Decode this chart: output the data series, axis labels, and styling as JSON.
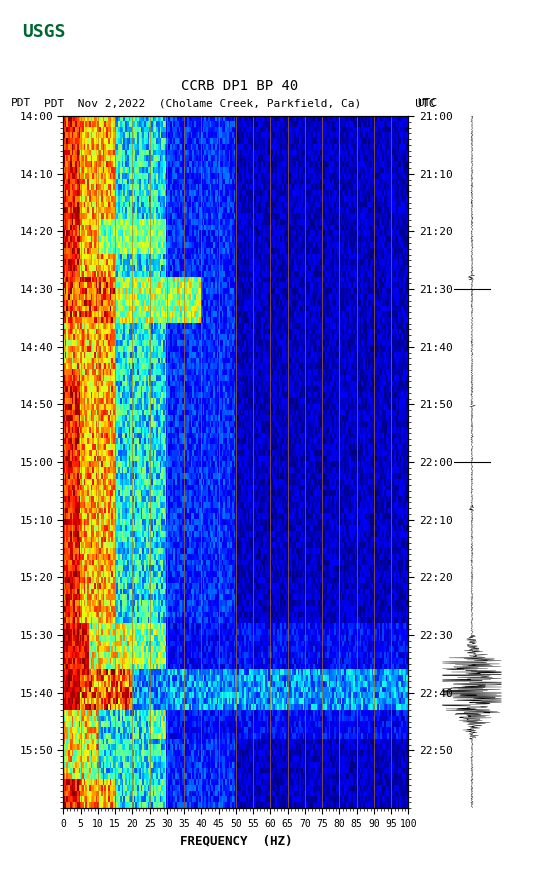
{
  "title_line1": "CCRB DP1 BP 40",
  "title_line2": "PDT  Nov 2,2022  (Cholame Creek, Parkfield, Ca)        UTC",
  "xlabel": "FREQUENCY  (HZ)",
  "freq_ticks": [
    0,
    5,
    10,
    15,
    20,
    25,
    30,
    35,
    40,
    45,
    50,
    55,
    60,
    65,
    70,
    75,
    80,
    85,
    90,
    95,
    100
  ],
  "freq_min": 0,
  "freq_max": 100,
  "pdt_tick_labels": [
    "14:00",
    "14:10",
    "14:20",
    "14:30",
    "14:40",
    "14:50",
    "15:00",
    "15:10",
    "15:20",
    "15:30",
    "15:40",
    "15:50"
  ],
  "utc_tick_labels": [
    "21:00",
    "21:10",
    "21:20",
    "21:30",
    "21:40",
    "21:50",
    "22:00",
    "22:10",
    "22:20",
    "22:30",
    "22:40",
    "22:50"
  ],
  "n_time": 120,
  "n_freq": 200,
  "background_color": "#ffffff",
  "spectrogram_cmap": "jet",
  "vertical_line_freqs": [
    5,
    10,
    15,
    20,
    25,
    30,
    35,
    40,
    45,
    50,
    55,
    60,
    65,
    70,
    75,
    80,
    85,
    90,
    95,
    100
  ],
  "vertical_line_color": "#bb7700",
  "vertical_line_alpha": 0.75,
  "fig_width": 5.52,
  "fig_height": 8.93,
  "dpi": 100
}
